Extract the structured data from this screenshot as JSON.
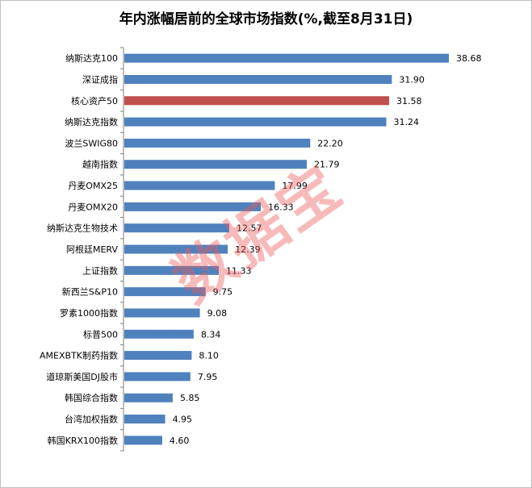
{
  "chart_data": {
    "type": "bar",
    "orientation": "horizontal",
    "title": "年内涨幅居前的全球市场指数(%,截至8月31日)",
    "categories": [
      "纳斯达克100",
      "深证成指",
      "核心资产50",
      "纳斯达克指数",
      "波兰SWIG80",
      "越南指数",
      "丹麦OMX25",
      "丹麦OMX20",
      "纳斯达克生物技术",
      "阿根廷MERV",
      "上证指数",
      "新西兰S&P10",
      "罗素1000指数",
      "标普500",
      "AMEXBTK制药指数",
      "道琼斯美国DJ股市",
      "韩国综合指数",
      "台湾加权指数",
      "韩国KRX100指数"
    ],
    "values": [
      38.68,
      31.9,
      31.58,
      31.24,
      22.2,
      21.79,
      17.99,
      16.33,
      12.57,
      12.39,
      11.33,
      9.75,
      9.08,
      8.34,
      8.1,
      7.95,
      5.85,
      4.95,
      4.6
    ],
    "value_labels": [
      "38.68",
      "31.90",
      "31.58",
      "31.24",
      "22.20",
      "21.79",
      "17.99",
      "16.33",
      "12.57",
      "12.39",
      "11.33",
      "9.75",
      "9.08",
      "8.34",
      "8.10",
      "7.95",
      "5.85",
      "4.95",
      "4.60"
    ],
    "highlight_index": 2,
    "colors": {
      "bar": "#4f81bd",
      "highlight": "#c0504d",
      "axis": "#7f7f7f"
    },
    "xlim": [
      0,
      38.68
    ],
    "grid": false,
    "legend": "none"
  },
  "watermark": "数据宝"
}
